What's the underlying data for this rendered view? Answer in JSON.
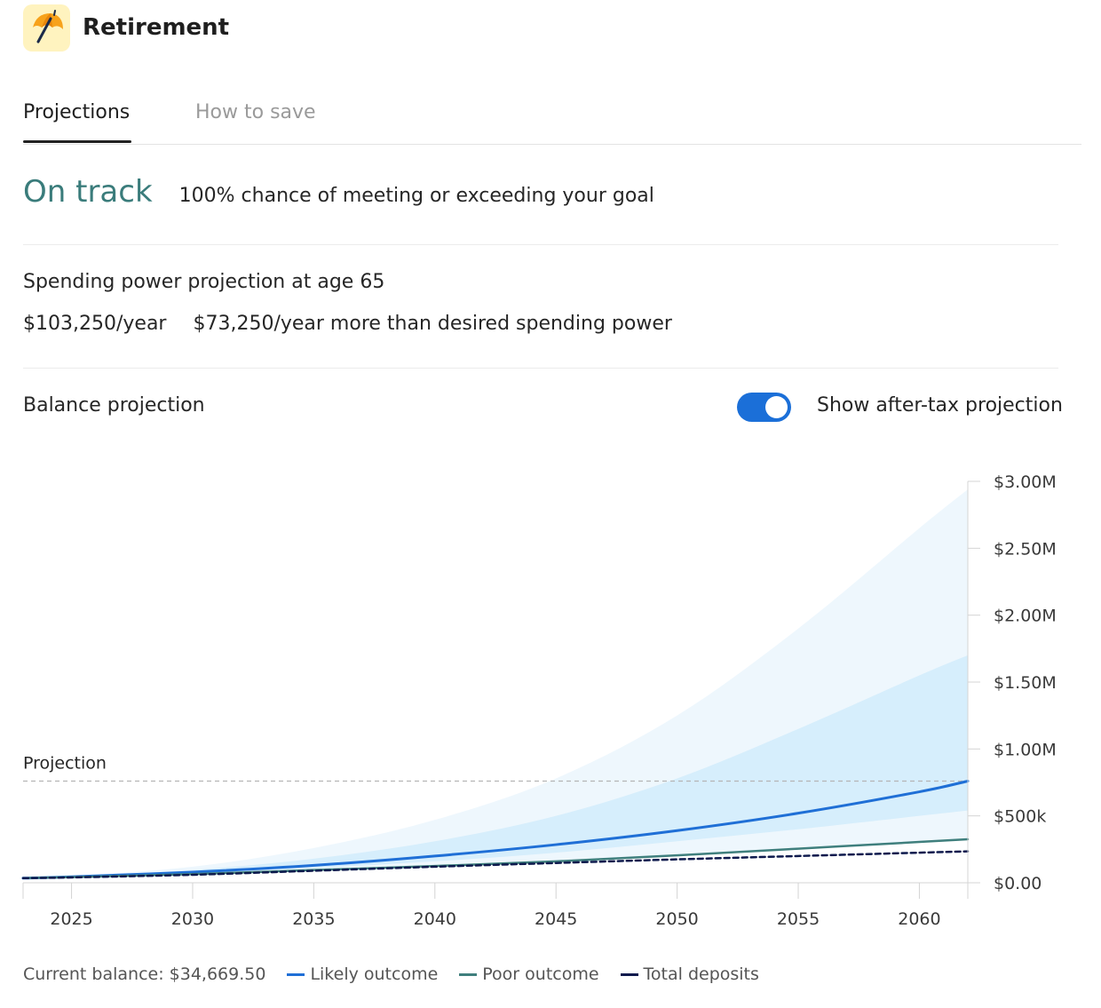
{
  "header": {
    "title": "Retirement",
    "icon": "umbrella-icon"
  },
  "tabs": [
    {
      "label": "Projections",
      "active": true
    },
    {
      "label": "How to save",
      "active": false
    }
  ],
  "status": {
    "title": "On track",
    "description": "100% chance of meeting or exceeding your goal"
  },
  "spending": {
    "title": "Spending power projection at age 65",
    "value": "$103,250/year",
    "extra": "$73,250/year more than desired spending power"
  },
  "balance": {
    "title": "Balance projection",
    "toggle_label": "Show after-tax projection",
    "toggle_on": true
  },
  "chart_data": {
    "type": "area",
    "x_ticks": [
      2025,
      2030,
      2035,
      2040,
      2045,
      2050,
      2055,
      2060
    ],
    "x_range": [
      2023,
      2062
    ],
    "y_ticks": [
      {
        "value": 0,
        "label": "$0.00"
      },
      {
        "value": 500000,
        "label": "$500k"
      },
      {
        "value": 1000000,
        "label": "$1.00M"
      },
      {
        "value": 1500000,
        "label": "$1.50M"
      },
      {
        "value": 2000000,
        "label": "$2.00M"
      },
      {
        "value": 2500000,
        "label": "$2.50M"
      },
      {
        "value": 3000000,
        "label": "$3.00M"
      }
    ],
    "ylim": [
      0,
      3000000
    ],
    "annotation": {
      "label": "Projection",
      "value": 760000
    },
    "x": [
      2023,
      2025,
      2030,
      2035,
      2040,
      2045,
      2050,
      2055,
      2060,
      2062
    ],
    "series": [
      {
        "name": "Likely outcome",
        "color": "#1f6fd6",
        "values": [
          34670,
          45000,
          80000,
          130000,
          200000,
          285000,
          390000,
          520000,
          680000,
          760000
        ]
      },
      {
        "name": "Poor outcome",
        "color": "#3f7f7d",
        "values": [
          34670,
          42000,
          65000,
          95000,
          125000,
          160000,
          205000,
          255000,
          305000,
          325000
        ]
      },
      {
        "name": "Total deposits",
        "color": "#0e1a4d",
        "values": [
          34670,
          40000,
          60000,
          90000,
          120000,
          148000,
          175000,
          200000,
          225000,
          235000
        ]
      }
    ],
    "bands": [
      {
        "color": "#eef7fd",
        "upper": [
          34670,
          50000,
          120000,
          260000,
          470000,
          780000,
          1250000,
          1900000,
          2650000,
          2940000
        ],
        "lower": [
          34670,
          42000,
          65000,
          95000,
          125000,
          160000,
          205000,
          255000,
          305000,
          325000
        ]
      },
      {
        "color": "#d6eefc",
        "upper": [
          34670,
          47000,
          95000,
          180000,
          310000,
          500000,
          780000,
          1150000,
          1550000,
          1700000
        ],
        "lower": [
          34670,
          44000,
          72000,
          110000,
          160000,
          225000,
          310000,
          400000,
          500000,
          540000
        ]
      }
    ]
  },
  "legend": {
    "current_balance": "Current balance: $34,669.50",
    "items": [
      {
        "label": "Likely outcome",
        "color": "#1f6fd6"
      },
      {
        "label": "Poor outcome",
        "color": "#3f7f7d"
      },
      {
        "label": "Total deposits",
        "color": "#0e1a4d"
      }
    ]
  }
}
